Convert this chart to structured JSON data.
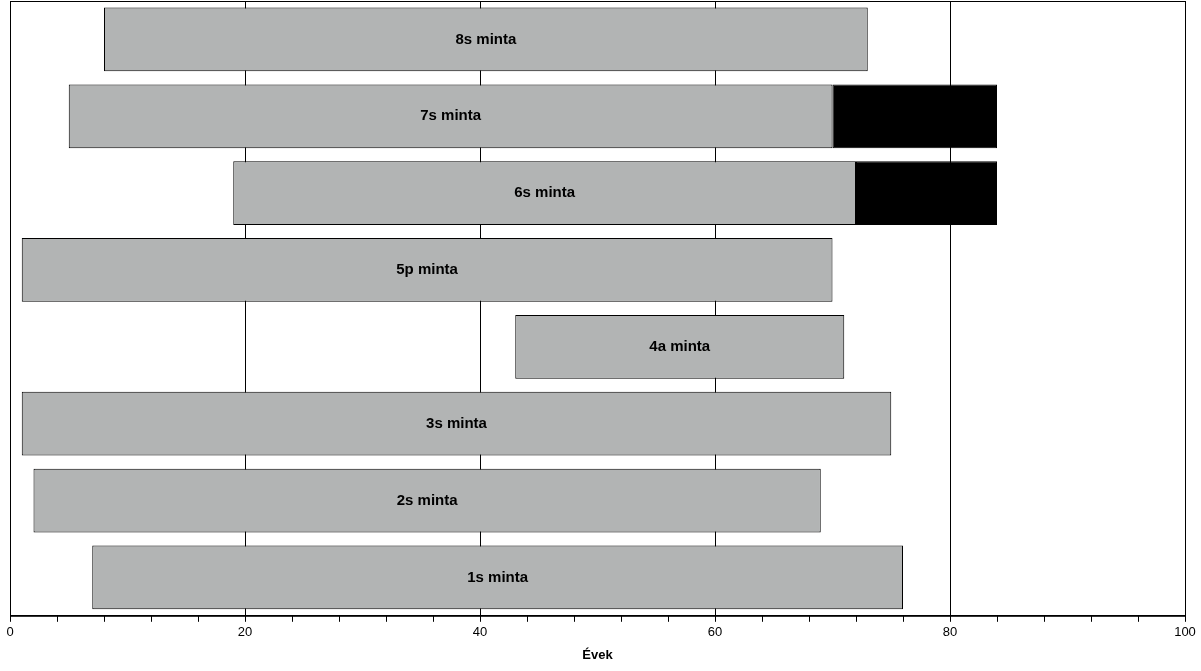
{
  "chart_data": {
    "type": "bar",
    "orientation": "horizontal",
    "xlabel": "Évek",
    "categories": [
      "8s minta",
      "7s minta",
      "6s minta",
      "5p minta",
      "4a minta",
      "3s minta",
      "2s minta",
      "1s minta"
    ],
    "series": [
      {
        "color": "#b2b4b4",
        "base": [
          8,
          5,
          19,
          1,
          43,
          1,
          2,
          7
        ],
        "values": [
          65,
          65,
          53,
          69,
          28,
          74,
          67,
          69
        ]
      },
      {
        "color": "#000000",
        "base": [
          null,
          70,
          72,
          null,
          null,
          null,
          null,
          null
        ],
        "values": [
          null,
          14,
          12,
          null,
          null,
          null,
          null,
          null
        ]
      }
    ],
    "xlim": [
      0,
      100
    ],
    "xticks": [
      0,
      {
        "value": 4,
        "label": null
      },
      {
        "value": 8,
        "label": null
      },
      {
        "value": 12,
        "label": null
      },
      {
        "value": 16,
        "label": null
      },
      20,
      {
        "value": 24,
        "label": null
      },
      {
        "value": 28,
        "label": null
      },
      {
        "value": 32,
        "label": null
      },
      {
        "value": 36,
        "label": null
      },
      40,
      {
        "value": 44,
        "label": null
      },
      {
        "value": 48,
        "label": null
      },
      {
        "value": 52,
        "label": null
      },
      {
        "value": 56,
        "label": null
      },
      60,
      {
        "value": 64,
        "label": null
      },
      {
        "value": 68,
        "label": null
      },
      {
        "value": 72,
        "label": null
      },
      {
        "value": 76,
        "label": null
      },
      80,
      {
        "value": 84,
        "label": null
      },
      {
        "value": 88,
        "label": null
      },
      {
        "value": 92,
        "label": null
      },
      {
        "value": 96,
        "label": null
      },
      100
    ],
    "grid": "x",
    "tick_labels": "x",
    "legend": false
  }
}
